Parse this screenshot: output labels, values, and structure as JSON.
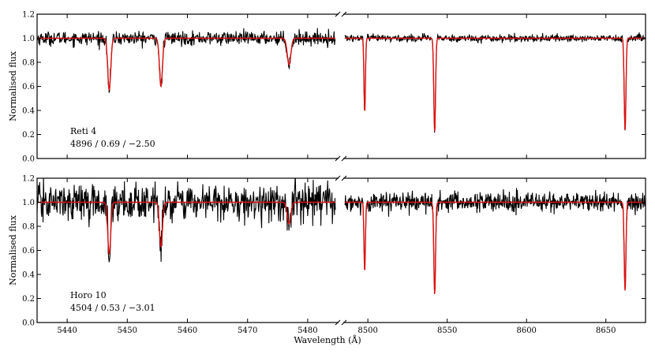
{
  "chart_data": {
    "type": "line",
    "xlabel": "Wavelength (Å)",
    "ylabel": "Normalised flux",
    "ylim": [
      0.0,
      1.2
    ],
    "yticks": [
      "0.0",
      "0.2",
      "0.4",
      "0.6",
      "0.8",
      "1.0",
      "1.2"
    ],
    "broken_x_axis": true,
    "segments": [
      {
        "xlim": [
          5435,
          5485
        ],
        "xticks": [
          "5440",
          "5450",
          "5460",
          "5470",
          "5480"
        ]
      },
      {
        "xlim": [
          8485,
          8675
        ],
        "xticks": [
          "8500",
          "8550",
          "8600",
          "8650"
        ]
      }
    ],
    "series_colors": {
      "observed": "#000000",
      "model": "#dd1111"
    },
    "panels": [
      {
        "star": "Reti 4",
        "params": "4896 / 0.69 / −2.50",
        "noise": 0.028,
        "lines": [
          {
            "x": 5447.0,
            "depth": 0.43,
            "width": 0.25
          },
          {
            "x": 5455.6,
            "depth": 0.4,
            "width": 0.25
          },
          {
            "x": 5476.9,
            "depth": 0.22,
            "width": 0.3
          },
          {
            "x": 8498.0,
            "depth": 0.62,
            "width": 0.45
          },
          {
            "x": 8542.1,
            "depth": 0.78,
            "width": 0.55
          },
          {
            "x": 8662.1,
            "depth": 0.77,
            "width": 0.55
          }
        ]
      },
      {
        "star": "Horo 10",
        "params": "4504 / 0.53 / −3.01",
        "noise": 0.075,
        "lines": [
          {
            "x": 5447.0,
            "depth": 0.43,
            "width": 0.25
          },
          {
            "x": 5455.6,
            "depth": 0.37,
            "width": 0.25
          },
          {
            "x": 5476.9,
            "depth": 0.18,
            "width": 0.3
          },
          {
            "x": 8498.0,
            "depth": 0.58,
            "width": 0.45
          },
          {
            "x": 8542.1,
            "depth": 0.77,
            "width": 0.55
          },
          {
            "x": 8662.1,
            "depth": 0.74,
            "width": 0.55
          }
        ]
      }
    ]
  }
}
